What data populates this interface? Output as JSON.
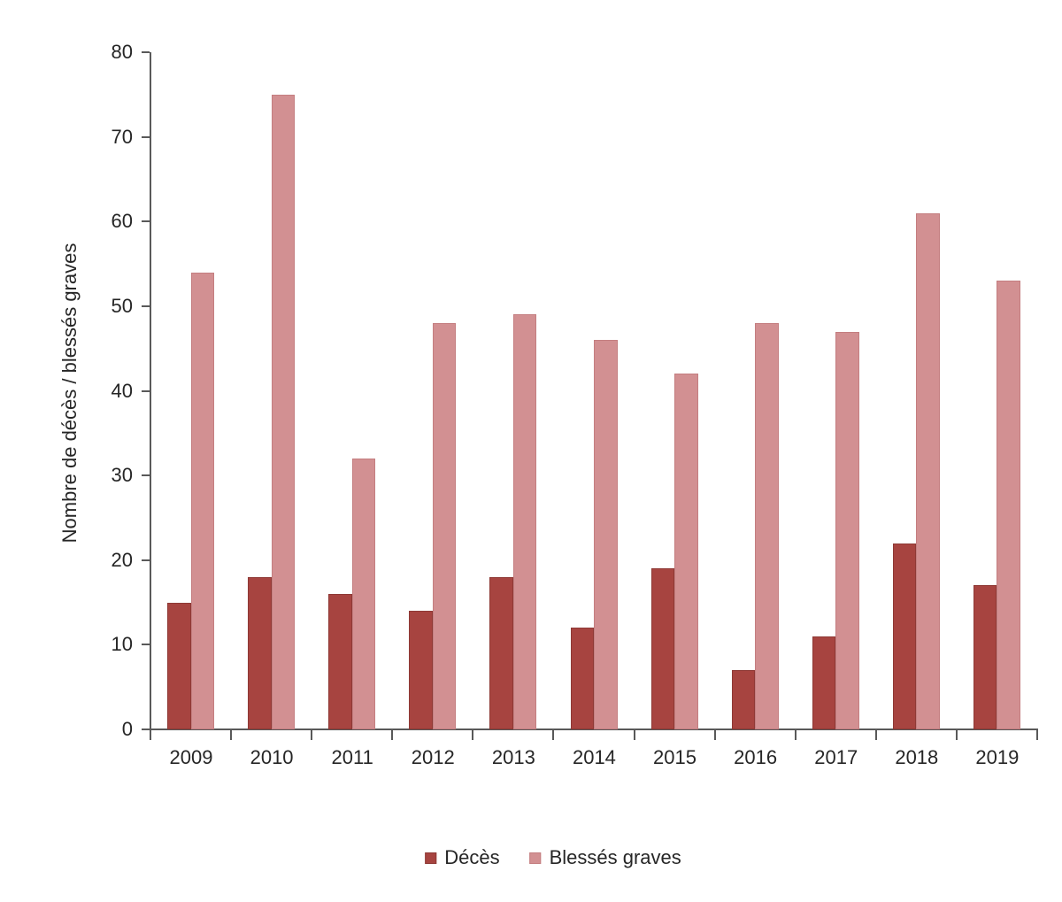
{
  "chart_data": {
    "type": "bar",
    "title": "",
    "categories": [
      "2009",
      "2010",
      "2011",
      "2012",
      "2013",
      "2014",
      "2015",
      "2016",
      "2017",
      "2018",
      "2019"
    ],
    "series": [
      {
        "name": "Décès",
        "values": [
          15,
          18,
          16,
          14,
          18,
          12,
          19,
          7,
          11,
          22,
          17
        ],
        "color": "#A74440",
        "border_color": "#8E3935"
      },
      {
        "name": "Blessés graves",
        "values": [
          54,
          75,
          32,
          48,
          49,
          46,
          42,
          48,
          47,
          61,
          53
        ],
        "color": "#D29092",
        "border_color": "#C47E80"
      }
    ],
    "xlabel": "",
    "ylabel": "Nombre de décès / blessés graves",
    "ylim": [
      0,
      80
    ],
    "ytick_step": 10,
    "yticks": [
      0,
      10,
      20,
      30,
      40,
      50,
      60,
      70,
      80
    ],
    "grid": false,
    "legend_position": "bottom"
  },
  "colors": {
    "axis": "#595959",
    "text": "#262626",
    "background": "#FFFFFF"
  }
}
